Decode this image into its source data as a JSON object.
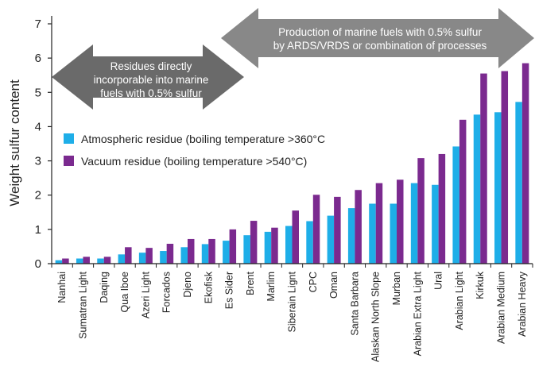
{
  "chart_data": {
    "type": "bar",
    "title": "",
    "xlabel": "",
    "ylabel": "Weight sulfur content",
    "ylim": [
      0,
      7
    ],
    "yticks": [
      0,
      1,
      2,
      3,
      4,
      5,
      6,
      7
    ],
    "grid": false,
    "legend_position": "middle-left",
    "categories": [
      "Nanhai",
      "Sumatran Light",
      "Daqing",
      "Qua Iboe",
      "Azeri Light",
      "Forcados",
      "Djeno",
      "Ekofisk",
      "Es Sider",
      "Brent",
      "Marlim",
      "Siberain Lignt",
      "CPC",
      "Oman",
      "Santa Barbara",
      "Alaskan North Slope",
      "Murban",
      "Arabian Extra Light",
      "Ural",
      "Arabian Light",
      "Kirkuk",
      "Arabian Medium",
      "Arabian Heavy"
    ],
    "series": [
      {
        "name": "Atmospheric residue (boiling temperature >360°C",
        "color": "#1eaee8",
        "values": [
          0.1,
          0.15,
          0.15,
          0.27,
          0.32,
          0.37,
          0.48,
          0.57,
          0.67,
          0.83,
          0.93,
          1.1,
          1.24,
          1.4,
          1.62,
          1.75,
          1.75,
          2.35,
          2.3,
          3.42,
          4.35,
          4.42,
          4.72
        ]
      },
      {
        "name": "Vacuum residue (boiling temperature >540°C)",
        "color": "#7b2a8f",
        "values": [
          0.15,
          0.2,
          0.2,
          0.48,
          0.46,
          0.58,
          0.72,
          0.72,
          1.0,
          1.25,
          1.05,
          1.55,
          2.01,
          1.95,
          2.15,
          2.35,
          2.45,
          3.08,
          3.2,
          4.2,
          5.55,
          5.62,
          5.85
        ]
      }
    ],
    "annotations": [
      {
        "lines": [
          "Residues directly",
          "incorporable into marine",
          "fuels with 0.5% sulfur"
        ],
        "color": "#6a6a6a"
      },
      {
        "lines": [
          "Production of marine fuels with 0.5% sulfur",
          "by ARDS/VRDS or combination of processes"
        ],
        "color": "#888888"
      }
    ]
  }
}
